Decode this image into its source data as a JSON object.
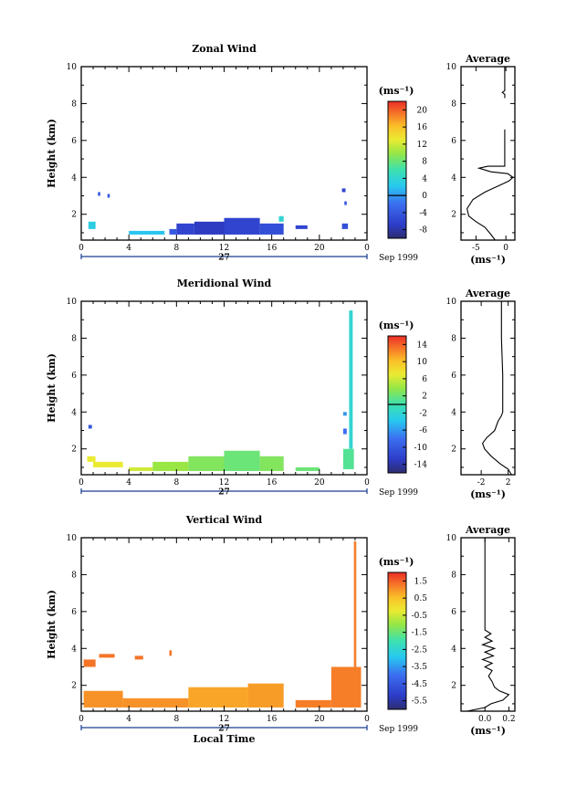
{
  "figure": {
    "x_axis_label": "Local Time",
    "date_label": "27",
    "month_label": "Sep 1999",
    "y_axis_label": "Height (km)",
    "colorbar_unit": "(ms⁻¹)",
    "average_unit": "(ms⁻¹)",
    "average_title": "Average",
    "x_ticks": [
      "0",
      "4",
      "8",
      "12",
      "16",
      "20",
      "0"
    ],
    "y_ticks": [
      "2",
      "4",
      "6",
      "8",
      "10"
    ]
  },
  "chart_data": [
    {
      "type": "heatmap",
      "title": "Zonal Wind",
      "xlabel": "",
      "ylabel": "Height (km)",
      "xlim": [
        0,
        24
      ],
      "ylim": [
        0.6,
        10
      ],
      "colorbar": {
        "ticks": [
          "20",
          "16",
          "12",
          "8",
          "4",
          "0",
          "-4",
          "-8"
        ],
        "range": [
          -10,
          22
        ],
        "zero_line": 0
      },
      "cells": [
        {
          "x0": 0.6,
          "x1": 1.2,
          "y0": 1.2,
          "y1": 1.6,
          "v": 3
        },
        {
          "x0": 1.4,
          "x1": 1.6,
          "y0": 3.0,
          "y1": 3.2,
          "v": -4
        },
        {
          "x0": 2.2,
          "x1": 2.4,
          "y0": 2.9,
          "y1": 3.1,
          "v": -4
        },
        {
          "x0": 4.0,
          "x1": 7.0,
          "y0": 0.9,
          "y1": 1.1,
          "v": 2
        },
        {
          "x0": 7.4,
          "x1": 8.0,
          "y0": 0.9,
          "y1": 1.2,
          "v": -4
        },
        {
          "x0": 8.0,
          "x1": 9.5,
          "y0": 0.9,
          "y1": 1.5,
          "v": -6
        },
        {
          "x0": 9.5,
          "x1": 12.0,
          "y0": 0.9,
          "y1": 1.6,
          "v": -7
        },
        {
          "x0": 12.0,
          "x1": 15.0,
          "y0": 0.9,
          "y1": 1.8,
          "v": -6
        },
        {
          "x0": 15.0,
          "x1": 17.0,
          "y0": 0.9,
          "y1": 1.5,
          "v": -5
        },
        {
          "x0": 16.6,
          "x1": 17.0,
          "y0": 1.6,
          "y1": 1.9,
          "v": 4
        },
        {
          "x0": 18.0,
          "x1": 19.0,
          "y0": 1.2,
          "y1": 1.4,
          "v": -6
        },
        {
          "x0": 21.9,
          "x1": 22.2,
          "y0": 3.2,
          "y1": 3.4,
          "v": -6
        },
        {
          "x0": 22.1,
          "x1": 22.3,
          "y0": 2.5,
          "y1": 2.7,
          "v": -4
        },
        {
          "x0": 21.9,
          "x1": 22.4,
          "y0": 1.2,
          "y1": 1.5,
          "v": -5
        }
      ],
      "average": {
        "xlim": [
          -7.5,
          1.5
        ],
        "x_ticks": [
          -5,
          0
        ],
        "profile": [
          [
            -1.8,
            0.6
          ],
          [
            -2.5,
            0.9
          ],
          [
            -3.5,
            1.3
          ],
          [
            -5.0,
            1.6
          ],
          [
            -6.2,
            1.9
          ],
          [
            -6.5,
            2.3
          ],
          [
            -5.5,
            2.8
          ],
          [
            -3.5,
            3.2
          ],
          [
            -1.5,
            3.5
          ],
          [
            0.5,
            3.8
          ],
          [
            1.2,
            4.0
          ],
          [
            0.3,
            4.2
          ],
          [
            -2.5,
            4.3
          ],
          [
            -4.5,
            4.5
          ],
          [
            -3.0,
            4.6
          ],
          [
            -0.2,
            4.6
          ],
          [
            -0.2,
            6.6
          ]
        ],
        "profile_upper": [
          [
            -0.2,
            8.3
          ],
          [
            -0.2,
            8.5
          ],
          [
            -0.6,
            8.6
          ],
          [
            -0.2,
            8.7
          ],
          [
            -0.2,
            10
          ]
        ]
      }
    },
    {
      "type": "heatmap",
      "title": "Meridional Wind",
      "xlabel": "",
      "ylabel": "Height (km)",
      "xlim": [
        0,
        24
      ],
      "ylim": [
        0.6,
        10
      ],
      "colorbar": {
        "ticks": [
          "14",
          "10",
          "6",
          "2",
          "-2",
          "-6",
          "-10",
          "-14"
        ],
        "range": [
          -16,
          16
        ],
        "zero_line": 0
      },
      "cells": [
        {
          "x0": 0.6,
          "x1": 0.9,
          "y0": 3.1,
          "y1": 3.3,
          "v": -10
        },
        {
          "x0": 0.5,
          "x1": 1.2,
          "y0": 1.3,
          "y1": 1.6,
          "v": 7
        },
        {
          "x0": 1.0,
          "x1": 3.5,
          "y0": 1.0,
          "y1": 1.3,
          "v": 7
        },
        {
          "x0": 4.0,
          "x1": 6.0,
          "y0": 0.8,
          "y1": 1.0,
          "v": 6
        },
        {
          "x0": 6.0,
          "x1": 9.0,
          "y0": 0.8,
          "y1": 1.3,
          "v": 4
        },
        {
          "x0": 9.0,
          "x1": 12.0,
          "y0": 0.8,
          "y1": 1.6,
          "v": 3
        },
        {
          "x0": 12.0,
          "x1": 15.0,
          "y0": 0.8,
          "y1": 1.9,
          "v": 2
        },
        {
          "x0": 15.0,
          "x1": 17.0,
          "y0": 0.8,
          "y1": 1.6,
          "v": 3
        },
        {
          "x0": 18.0,
          "x1": 20.0,
          "y0": 0.8,
          "y1": 1.0,
          "v": 2
        },
        {
          "x0": 22.5,
          "x1": 22.8,
          "y0": 2.0,
          "y1": 9.5,
          "v": -2
        },
        {
          "x0": 22.0,
          "x1": 22.3,
          "y0": 2.8,
          "y1": 3.1,
          "v": -8
        },
        {
          "x0": 22.0,
          "x1": 22.3,
          "y0": 3.8,
          "y1": 4.0,
          "v": -6
        },
        {
          "x0": 22.0,
          "x1": 22.9,
          "y0": 0.9,
          "y1": 2.0,
          "v": 1
        }
      ],
      "average": {
        "xlim": [
          -5.0,
          3.0
        ],
        "x_ticks": [
          -2,
          2
        ],
        "profile": [
          [
            2.5,
            0.6
          ],
          [
            2.0,
            0.9
          ],
          [
            0.8,
            1.2
          ],
          [
            -0.5,
            1.6
          ],
          [
            -1.5,
            2.0
          ],
          [
            -1.8,
            2.3
          ],
          [
            -1.2,
            2.6
          ],
          [
            0.0,
            3.0
          ],
          [
            0.5,
            3.5
          ],
          [
            1.0,
            3.8
          ],
          [
            1.2,
            4.0
          ],
          [
            1.2,
            6.0
          ],
          [
            1.0,
            8.0
          ],
          [
            1.0,
            10.0
          ]
        ]
      }
    },
    {
      "type": "heatmap",
      "title": "Vertical Wind",
      "xlabel": "Local Time",
      "ylabel": "Height (km)",
      "xlim": [
        0,
        24
      ],
      "ylim": [
        0.6,
        10
      ],
      "colorbar": {
        "ticks": [
          "1.5",
          "0.5",
          "-0.5",
          "-1.5",
          "-2.5",
          "-3.5",
          "-4.5",
          "-5.5"
        ],
        "range": [
          -6,
          2
        ],
        "zero_line": null
      },
      "cells": [
        {
          "x0": 0.2,
          "x1": 1.2,
          "y0": 3.0,
          "y1": 3.4,
          "v": 1.3
        },
        {
          "x0": 1.5,
          "x1": 2.8,
          "y0": 3.5,
          "y1": 3.7,
          "v": 1.3
        },
        {
          "x0": 4.5,
          "x1": 5.2,
          "y0": 3.4,
          "y1": 3.6,
          "v": 1.3
        },
        {
          "x0": 7.4,
          "x1": 7.6,
          "y0": 3.6,
          "y1": 3.9,
          "v": 1.3
        },
        {
          "x0": 0.2,
          "x1": 3.5,
          "y0": 0.8,
          "y1": 1.7,
          "v": 1.0
        },
        {
          "x0": 3.5,
          "x1": 9.0,
          "y0": 0.8,
          "y1": 1.3,
          "v": 1.0
        },
        {
          "x0": 9.0,
          "x1": 14.0,
          "y0": 0.8,
          "y1": 1.9,
          "v": 0.8
        },
        {
          "x0": 14.0,
          "x1": 17.0,
          "y0": 0.8,
          "y1": 2.1,
          "v": 0.9
        },
        {
          "x0": 18.0,
          "x1": 21.0,
          "y0": 0.8,
          "y1": 1.2,
          "v": 1.2
        },
        {
          "x0": 21.0,
          "x1": 23.5,
          "y0": 0.8,
          "y1": 3.0,
          "v": 1.2
        },
        {
          "x0": 22.9,
          "x1": 23.1,
          "y0": 3.0,
          "y1": 9.8,
          "v": 1.2
        }
      ],
      "average": {
        "xlim": [
          -0.2,
          0.25
        ],
        "x_ticks": [
          0.0,
          0.2
        ],
        "profile": [
          [
            -0.15,
            0.6
          ],
          [
            0.0,
            0.8
          ],
          [
            0.05,
            1.0
          ],
          [
            0.15,
            1.2
          ],
          [
            0.2,
            1.5
          ],
          [
            0.12,
            1.7
          ],
          [
            0.08,
            1.9
          ],
          [
            0.06,
            2.2
          ],
          [
            0.03,
            2.5
          ],
          [
            0.06,
            2.8
          ],
          [
            0.0,
            3.0
          ],
          [
            0.06,
            3.2
          ],
          [
            -0.02,
            3.4
          ],
          [
            0.07,
            3.6
          ],
          [
            0.0,
            3.8
          ],
          [
            0.08,
            4.0
          ],
          [
            -0.02,
            4.2
          ],
          [
            0.06,
            4.4
          ],
          [
            0.0,
            4.6
          ],
          [
            0.05,
            4.8
          ],
          [
            0.0,
            5.0
          ],
          [
            0.0,
            10.0
          ]
        ]
      }
    }
  ]
}
